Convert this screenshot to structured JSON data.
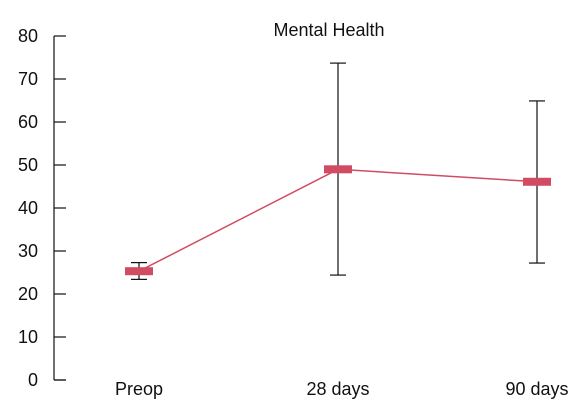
{
  "chart_data": {
    "type": "line",
    "title": "Mental Health",
    "xlabel": "",
    "ylabel": "",
    "categories": [
      "Preop",
      "28 days",
      "90 days"
    ],
    "ylim": [
      0,
      80
    ],
    "yticks": [
      0,
      10,
      20,
      30,
      40,
      50,
      60,
      70,
      80
    ],
    "grid": false,
    "series": [
      {
        "values": [
          25.3,
          49.0,
          46.1
        ],
        "error_low": [
          23.4,
          24.4,
          27.2
        ],
        "error_high": [
          27.3,
          73.7,
          64.9
        ],
        "color": "#d14b62"
      }
    ],
    "colors": {
      "axis": "#111111",
      "errorbar": "#111111",
      "line": "#d14b62",
      "marker": "#d14b62"
    }
  }
}
